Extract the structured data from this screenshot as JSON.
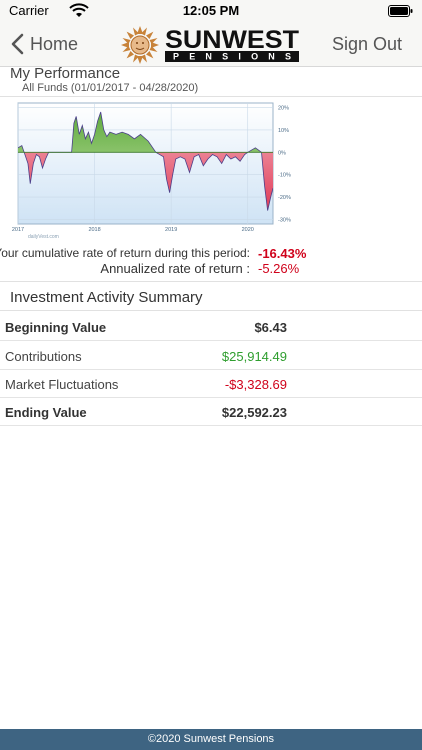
{
  "status_bar": {
    "carrier": "Carrier",
    "time": "12:05 PM"
  },
  "nav": {
    "back_label": "Home",
    "sign_out_label": "Sign Out",
    "logo_word": "SUNWEST",
    "logo_subword": "PENSIONS"
  },
  "performance": {
    "title": "My Performance",
    "subtitle": "All Funds (01/01/2017 - 04/28/2020)",
    "cumulative_label": "Your cumulative rate of return during this period:",
    "cumulative_value": "-16.43%",
    "annualized_label": "Annualized rate of return :",
    "annualized_value": "-5.26%"
  },
  "chart_data": {
    "type": "area",
    "x_tick_labels": [
      "2017",
      "2018",
      "2019",
      "2020"
    ],
    "y_tick_labels": [
      "20%",
      "10%",
      "0%",
      "-10%",
      "-20%",
      "-30%"
    ],
    "ylim": [
      -32,
      22
    ],
    "xlim": [
      2017.0,
      2020.33
    ],
    "grid": true,
    "watermark": "dailyVest.com",
    "positive_color": "#7cc35a",
    "negative_color": "#e8546a",
    "x": [
      2017.0,
      2017.05,
      2017.1,
      2017.13,
      2017.16,
      2017.2,
      2017.24,
      2017.28,
      2017.32,
      2017.36,
      2017.4,
      2017.5,
      2017.6,
      2017.7,
      2017.73,
      2017.76,
      2017.8,
      2017.84,
      2017.88,
      2017.92,
      2017.96,
      2018.0,
      2018.04,
      2018.08,
      2018.12,
      2018.16,
      2018.2,
      2018.28,
      2018.36,
      2018.44,
      2018.52,
      2018.6,
      2018.7,
      2018.8,
      2018.85,
      2018.9,
      2018.94,
      2018.98,
      2019.02,
      2019.06,
      2019.12,
      2019.18,
      2019.24,
      2019.3,
      2019.36,
      2019.42,
      2019.48,
      2019.54,
      2019.6,
      2019.66,
      2019.72,
      2019.78,
      2019.84,
      2019.9,
      2019.96,
      2020.0,
      2020.05,
      2020.1,
      2020.14,
      2020.18,
      2020.22,
      2020.26,
      2020.3,
      2020.33
    ],
    "y": [
      2,
      3,
      -2,
      -5,
      -14,
      -5,
      -1,
      -2,
      -7,
      -3,
      0,
      0,
      0,
      0,
      13,
      16,
      8,
      12,
      6,
      9,
      4,
      8,
      14,
      18,
      10,
      7,
      9,
      8,
      9,
      8,
      6,
      8,
      5,
      0,
      -1,
      -2,
      -12,
      -18,
      -10,
      -3,
      -2,
      -3,
      -9,
      -2,
      -1,
      -6,
      -3,
      -1,
      -2,
      -5,
      -1,
      -3,
      -2,
      -4,
      -1,
      0,
      1,
      2,
      1,
      0,
      -15,
      -26,
      -20,
      -16
    ]
  },
  "summary": {
    "title": "Investment Activity Summary",
    "rows": [
      {
        "label": "Beginning Value",
        "value": "$6.43"
      },
      {
        "label": "Contributions",
        "value": "$25,914.49"
      },
      {
        "label": "Market Fluctuations",
        "value": "-$3,328.69"
      },
      {
        "label": "Ending Value",
        "value": "$22,592.23"
      }
    ]
  },
  "footer": {
    "text": "©2020 Sunwest Pensions"
  }
}
